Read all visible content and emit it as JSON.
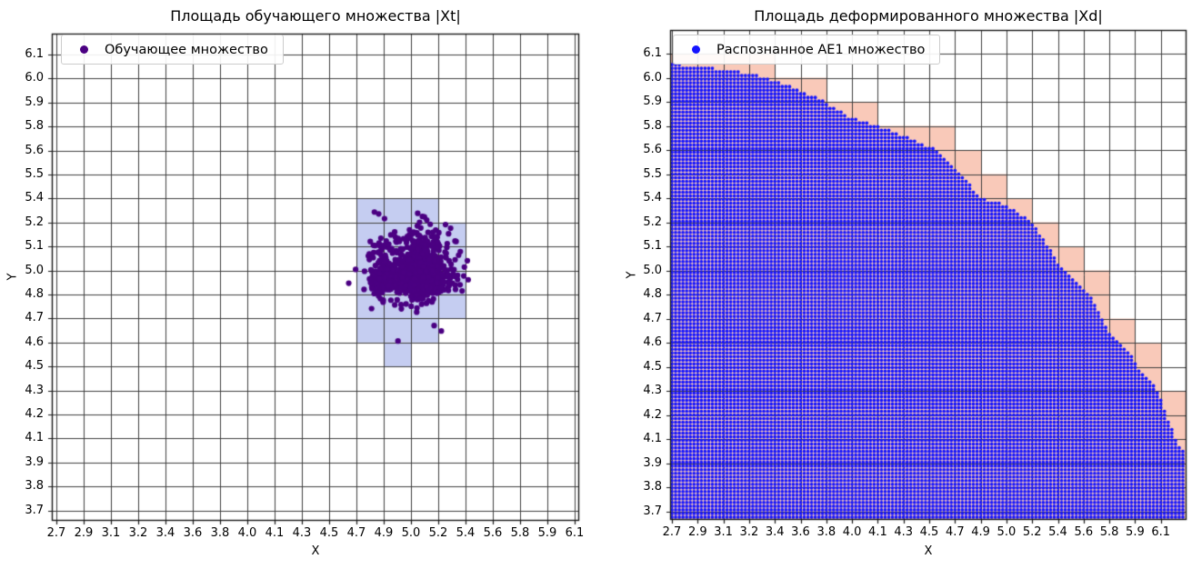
{
  "figure": {
    "background": "#ffffff",
    "grid_color": "#3f3f3f"
  },
  "chart_data": [
    {
      "type": "scatter",
      "title": "Площадь обучающего множества |Xt|",
      "xlabel": "X",
      "ylabel": "Y",
      "x_ticks": [
        "2.7",
        "2.9",
        "3.1",
        "3.2",
        "3.4",
        "3.6",
        "3.8",
        "4.0",
        "4.1",
        "4.3",
        "4.5",
        "4.7",
        "4.9",
        "5.0",
        "5.2",
        "5.4",
        "5.6",
        "5.8",
        "5.9",
        "6.1"
      ],
      "y_ticks": [
        "3.7",
        "3.8",
        "3.9",
        "4.1",
        "4.2",
        "4.3",
        "4.5",
        "4.6",
        "4.7",
        "4.8",
        "5.0",
        "5.1",
        "5.2",
        "5.4",
        "5.5",
        "5.6",
        "5.8",
        "5.9",
        "6.0",
        "6.1"
      ],
      "grid": true,
      "legend": {
        "label": "Обучающее множество",
        "marker_color": "#4B0082"
      },
      "series": {
        "name": "training-set",
        "distribution": "gaussian",
        "mean": [
          5.05,
          4.97
        ],
        "sigma": [
          0.113,
          0.096
        ],
        "n": 1000,
        "color": "#4B0082"
      },
      "highlight_cells": {
        "color": "#C5CDF1",
        "rects": [
          [
            4.7,
            5.2,
            5.2,
            5.4
          ],
          [
            4.7,
            5.4,
            5.1,
            5.2
          ],
          [
            4.7,
            5.4,
            5.0,
            5.1
          ],
          [
            4.7,
            5.4,
            4.8,
            5.0
          ],
          [
            4.7,
            5.4,
            4.7,
            4.8
          ],
          [
            4.7,
            5.2,
            4.6,
            4.7
          ],
          [
            4.9,
            5.0,
            4.5,
            4.6
          ]
        ]
      }
    },
    {
      "type": "scatter",
      "title": "Площадь деформированного множества |Xd|",
      "xlabel": "X",
      "ylabel": "Y",
      "x_ticks": [
        "2.7",
        "2.9",
        "3.1",
        "3.2",
        "3.4",
        "3.6",
        "3.8",
        "4.0",
        "4.1",
        "4.3",
        "4.5",
        "4.7",
        "4.9",
        "5.0",
        "5.2",
        "5.4",
        "5.6",
        "5.8",
        "5.9",
        "6.1"
      ],
      "y_ticks": [
        "3.7",
        "3.8",
        "3.9",
        "4.1",
        "4.2",
        "4.3",
        "4.5",
        "4.6",
        "4.7",
        "4.8",
        "5.0",
        "5.1",
        "5.2",
        "5.4",
        "5.5",
        "5.6",
        "5.8",
        "5.9",
        "6.0",
        "6.1"
      ],
      "grid": true,
      "legend": {
        "label": "Распознанное AE1 множество",
        "marker_color": "#1414FF"
      },
      "region": {
        "name": "recognized-set",
        "shape": "disk",
        "center": [
          2.64,
          1.82
        ],
        "radius": 4.237,
        "dot_color": "#1414FF",
        "cell_color": "#F9C9B9"
      }
    }
  ]
}
